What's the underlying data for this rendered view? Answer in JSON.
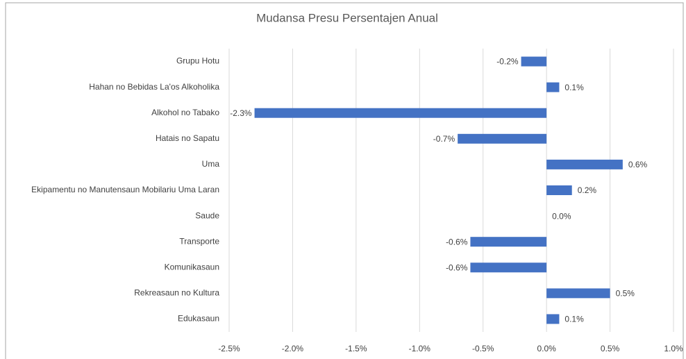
{
  "chart_data": {
    "type": "barh",
    "title": "Mudansa Presu Persentajen Anual",
    "categories": [
      "Grupu Hotu",
      "Hahan no Bebidas La'os Alkoholika",
      "Alkohol no Tabako",
      "Hatais no Sapatu",
      "Uma",
      "Ekipamentu no Manutensaun Mobilariu Uma Laran",
      "Saude",
      "Transporte",
      "Komunikasaun",
      "Rekreasaun no Kultura",
      "Edukasaun"
    ],
    "values": [
      -0.2,
      0.1,
      -2.3,
      -0.7,
      0.6,
      0.2,
      0.0,
      -0.6,
      -0.6,
      0.5,
      0.1
    ],
    "value_labels": [
      "-0.2%",
      "0.1%",
      "-2.3%",
      "-0.7%",
      "0.6%",
      "0.2%",
      "0.0%",
      "-0.6%",
      "-0.6%",
      "0.5%",
      "0.1%"
    ],
    "color": "#4472c4",
    "xlim": [
      -2.5,
      1.0
    ],
    "xticks": [
      {
        "value": -2.5,
        "label": "-2.5%"
      },
      {
        "value": -2.0,
        "label": "-2.0%"
      },
      {
        "value": -1.5,
        "label": "-1.5%"
      },
      {
        "value": -1.0,
        "label": "-1.0%"
      },
      {
        "value": -0.5,
        "label": "-0.5%"
      },
      {
        "value": 0.0,
        "label": "0.0%"
      },
      {
        "value": 0.5,
        "label": "0.5%"
      },
      {
        "value": 1.0,
        "label": "1.0%"
      }
    ],
    "grid": true
  }
}
